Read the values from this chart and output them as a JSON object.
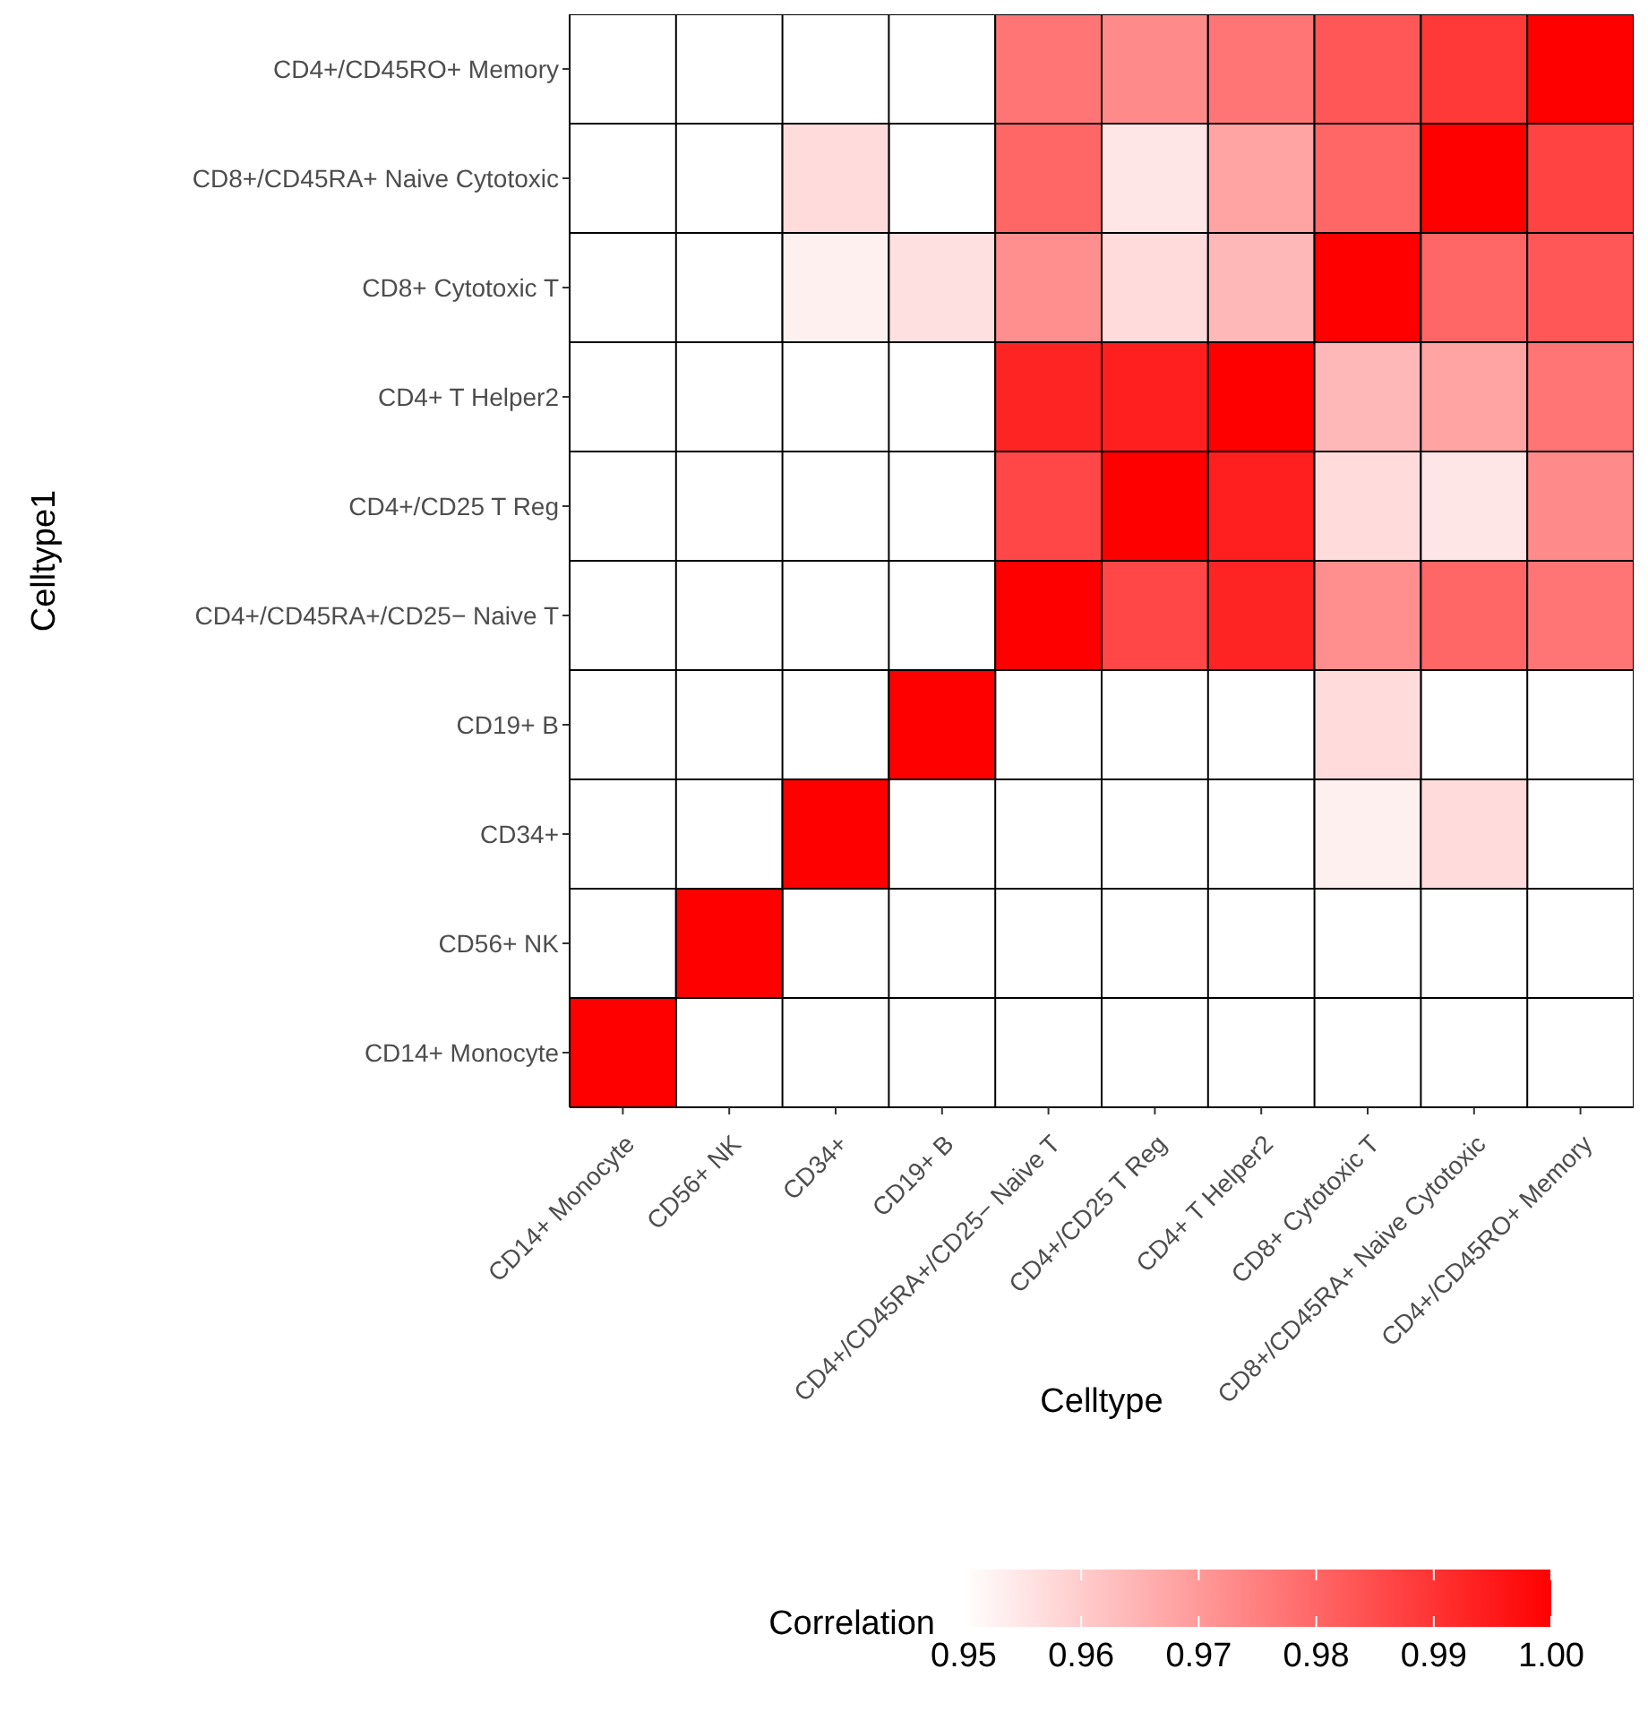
{
  "chart_data": {
    "type": "heatmap",
    "xlabel": "Celltype",
    "ylabel": "Celltype1",
    "clabel": "Correlation",
    "color": "#ff0000",
    "grid": true,
    "categories": [
      "CD14+ Monocyte",
      "CD56+ NK",
      "CD34+",
      "CD19+ B",
      "CD4+/CD45RA+/CD25− Naive T",
      "CD4+/CD25 T Reg",
      "CD4+ T Helper2",
      "CD8+ Cytotoxic T",
      "CD8+/CD45RA+ Naive Cytotoxic",
      "CD4+/CD45RO+ Memory"
    ],
    "y_categories": [
      "CD4+/CD45RO+ Memory",
      "CD8+/CD45RA+ Naive Cytotoxic",
      "CD8+ Cytotoxic T",
      "CD4+ T Helper2",
      "CD4+/CD25 T Reg",
      "CD4+/CD45RA+/CD25− Naive T",
      "CD19+ B",
      "CD34+",
      "CD56+ NK",
      "CD14+ Monocyte"
    ],
    "cells": [
      [
        null,
        null,
        null,
        null,
        0.977,
        0.973,
        0.977,
        0.983,
        0.989,
        1.0
      ],
      [
        null,
        null,
        0.957,
        null,
        0.98,
        0.955,
        0.968,
        0.98,
        1.0,
        0.987
      ],
      [
        null,
        null,
        0.953,
        0.956,
        0.972,
        0.957,
        0.964,
        1.0,
        0.98,
        0.983
      ],
      [
        null,
        null,
        null,
        null,
        0.993,
        0.994,
        1.0,
        0.964,
        0.968,
        0.977
      ],
      [
        null,
        null,
        null,
        null,
        0.986,
        1.0,
        0.994,
        0.957,
        0.955,
        0.973
      ],
      [
        null,
        null,
        null,
        null,
        1.0,
        0.986,
        0.993,
        0.972,
        0.98,
        0.977
      ],
      [
        null,
        null,
        null,
        1.0,
        null,
        null,
        null,
        0.957,
        null,
        null
      ],
      [
        null,
        null,
        1.0,
        null,
        null,
        null,
        null,
        0.953,
        0.957,
        null
      ],
      [
        null,
        1.0,
        null,
        null,
        null,
        null,
        null,
        null,
        null,
        null
      ],
      [
        1.0,
        null,
        null,
        null,
        null,
        null,
        null,
        null,
        null,
        null
      ]
    ],
    "clim": [
      0.95,
      1.0
    ],
    "cticks": [
      {
        "value": 0.95,
        "label": "0.95"
      },
      {
        "value": 0.96,
        "label": "0.96"
      },
      {
        "value": 0.97,
        "label": "0.97"
      },
      {
        "value": 0.98,
        "label": "0.98"
      },
      {
        "value": 0.99,
        "label": "0.99"
      },
      {
        "value": 1.0,
        "label": "1.00"
      }
    ]
  }
}
